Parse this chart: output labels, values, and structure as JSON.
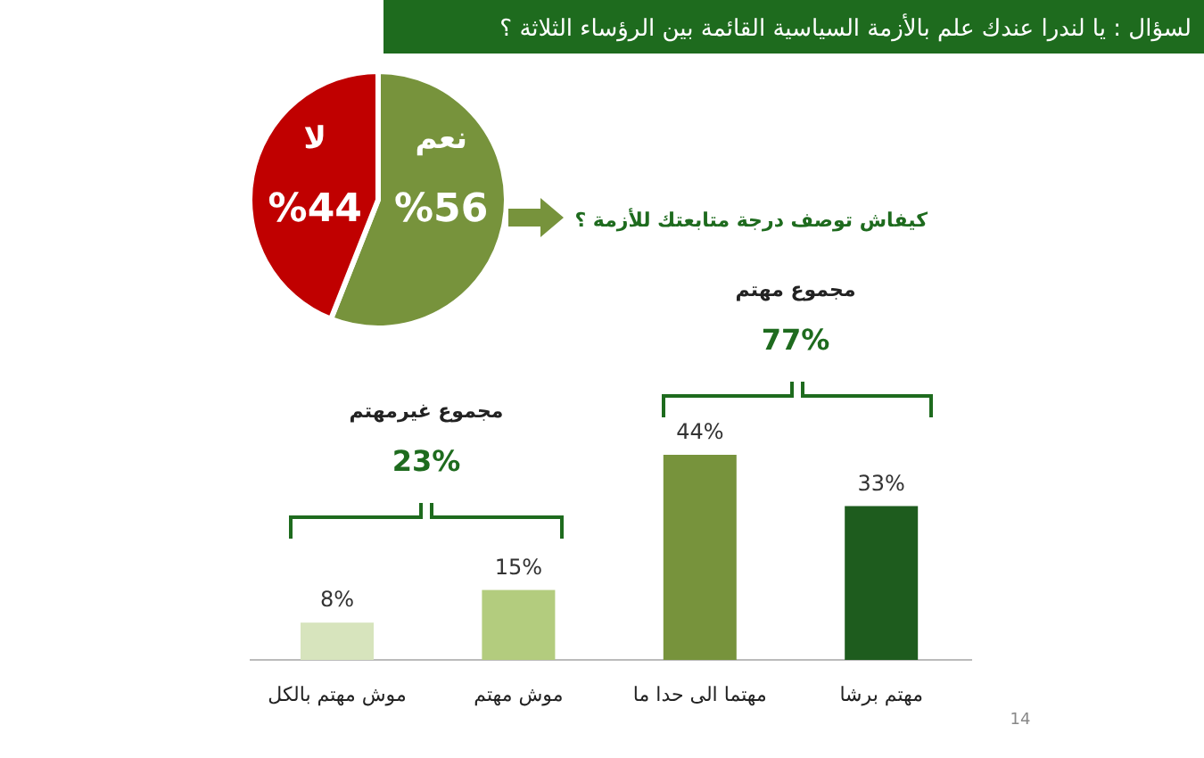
{
  "chart_data": [
    {
      "type": "pie",
      "title": "لسؤال : يا لندرا عندك علم بالأزمة السياسية القائمة بين الرؤساء الثلاثة ؟",
      "categories": [
        "نعم",
        "لا"
      ],
      "values": [
        56,
        44
      ],
      "colors": [
        "#77933c",
        "#c00000"
      ],
      "value_labels": [
        "%56",
        "%44"
      ]
    },
    {
      "type": "bar",
      "subtitle": "كيفاش توصف درجة متابعتك للأزمة ؟",
      "categories": [
        "موش مهتم بالكل",
        "موش مهتم",
        "مهتما الى حدا ما",
        "مهتم برشا"
      ],
      "values": [
        8,
        15,
        44,
        33
      ],
      "colors": [
        "#d7e4bd",
        "#b3cc7e",
        "#77933c",
        "#1e5c1e"
      ],
      "value_labels": [
        "8%",
        "15%",
        "44%",
        "33%"
      ],
      "annotations": [
        "مجموع غيرمهتم",
        "23%",
        "مجموع مهتم",
        "77%",
        "14"
      ]
    }
  ]
}
